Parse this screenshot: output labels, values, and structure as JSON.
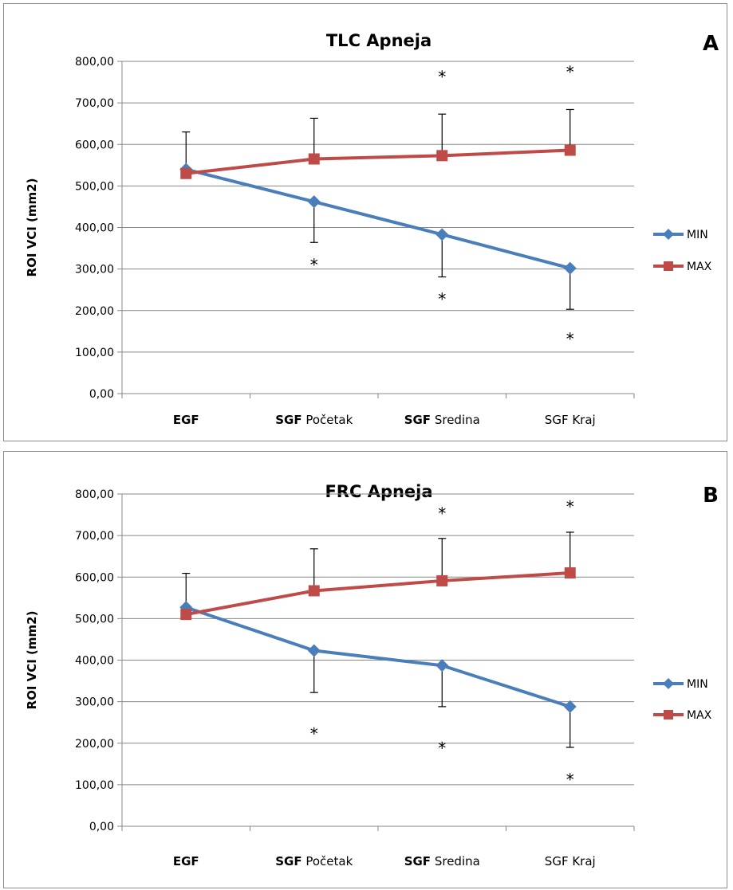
{
  "chart_data": [
    {
      "type": "line",
      "panel_letter": "A",
      "title": "TLC Apneja",
      "ylabel": "ROI VCI (mm2)",
      "xlabel": "",
      "ylim": [
        0,
        800
      ],
      "yticks": [
        "0,00",
        "100,00",
        "200,00",
        "300,00",
        "400,00",
        "500,00",
        "600,00",
        "700,00",
        "800,00"
      ],
      "categories": [
        {
          "bold": "EGF",
          "rest": ""
        },
        {
          "bold": "SGF",
          "rest": " Početak"
        },
        {
          "bold": "SGF",
          "rest": " Sredina"
        },
        {
          "bold": "",
          "rest": "SGF Kraj"
        }
      ],
      "grid": true,
      "legend_position": "right",
      "series": [
        {
          "name": "MIN",
          "color": "#4a7ebb",
          "marker": "diamond",
          "values": [
            540,
            462,
            383,
            302
          ],
          "error": [
            0,
            98,
            102,
            99
          ],
          "error_dir": "down"
        },
        {
          "name": "MAX",
          "color": "#be4b48",
          "marker": "square",
          "values": [
            530,
            565,
            573,
            586
          ],
          "error": [
            100,
            98,
            100,
            98
          ],
          "error_dir": "up"
        }
      ],
      "stars": [
        {
          "label": "*",
          "category": 1,
          "value": 316
        },
        {
          "label": "*",
          "category": 2,
          "value": 768
        },
        {
          "label": "*",
          "category": 2,
          "value": 233
        },
        {
          "label": "*",
          "category": 3,
          "value": 780
        },
        {
          "label": "*",
          "category": 3,
          "value": 137
        }
      ]
    },
    {
      "type": "line",
      "panel_letter": "B",
      "title": "FRC Apneja",
      "ylabel": "ROI VCI (mm2)",
      "xlabel": "",
      "ylim": [
        0,
        800
      ],
      "yticks": [
        "0,00",
        "100,00",
        "200,00",
        "300,00",
        "400,00",
        "500,00",
        "600,00",
        "700,00",
        "800,00"
      ],
      "categories": [
        {
          "bold": "EGF",
          "rest": ""
        },
        {
          "bold": "SGF",
          "rest": " Početak"
        },
        {
          "bold": "SGF",
          "rest": " Sredina"
        },
        {
          "bold": "",
          "rest": "SGF Kraj"
        }
      ],
      "grid": true,
      "legend_position": "right",
      "series": [
        {
          "name": "MIN",
          "color": "#4a7ebb",
          "marker": "diamond",
          "values": [
            527,
            423,
            387,
            288
          ],
          "error": [
            0,
            101,
            99,
            98
          ],
          "error_dir": "down"
        },
        {
          "name": "MAX",
          "color": "#be4b48",
          "marker": "square",
          "values": [
            510,
            567,
            591,
            610
          ],
          "error": [
            99,
            101,
            102,
            98
          ],
          "error_dir": "up"
        }
      ],
      "stars": [
        {
          "label": "*",
          "category": 1,
          "value": 228
        },
        {
          "label": "*",
          "category": 2,
          "value": 759
        },
        {
          "label": "*",
          "category": 2,
          "value": 194
        },
        {
          "label": "*",
          "category": 3,
          "value": 775
        },
        {
          "label": "*",
          "category": 3,
          "value": 118
        }
      ]
    }
  ]
}
